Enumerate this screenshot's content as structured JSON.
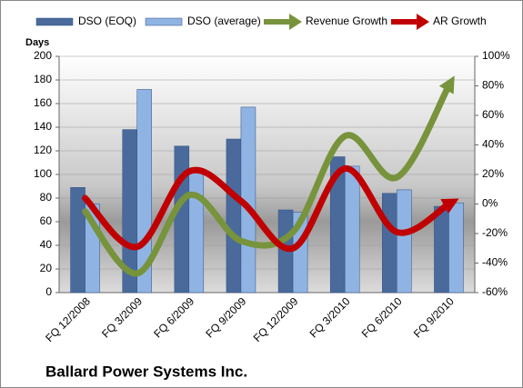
{
  "chart_data": {
    "type": "combo",
    "caption": "Ballard Power Systems Inc.",
    "ylabel": "Days",
    "categories": [
      "FQ 12/2008",
      "FQ 3/2009",
      "FQ 6/2009",
      "FQ 9/2009",
      "FQ 12/2009",
      "FQ 3/2010",
      "FQ 6/2010",
      "FQ 9/2010"
    ],
    "series": [
      {
        "name": "DSO (EOQ)",
        "kind": "bar",
        "color": "#4a6a9c",
        "values": [
          89,
          138,
          124,
          130,
          70,
          115,
          84,
          73
        ]
      },
      {
        "name": "DSO (average)",
        "kind": "bar",
        "color": "#8fb4e3",
        "values": [
          75,
          172,
          105,
          157,
          68,
          107,
          87,
          76
        ]
      },
      {
        "name": "Revenue Growth",
        "kind": "line",
        "axis": "y2",
        "color": "#77933c",
        "values": [
          -5,
          -47,
          6,
          -25,
          -19,
          46,
          18,
          80
        ]
      },
      {
        "name": "AR Growth",
        "kind": "line",
        "axis": "y2",
        "color": "#c00000",
        "values": [
          4,
          -29,
          22,
          2,
          -30,
          24,
          -19,
          0
        ]
      }
    ],
    "ylim": [
      0,
      200
    ],
    "yticks": [
      0,
      20,
      40,
      60,
      80,
      100,
      120,
      140,
      160,
      180,
      200
    ],
    "y2lim": [
      -60,
      100
    ],
    "y2ticks": [
      {
        "value": -60,
        "label": "-60%"
      },
      {
        "value": -40,
        "label": "-40%"
      },
      {
        "value": -20,
        "label": "-20%"
      },
      {
        "value": 0,
        "label": "0%"
      },
      {
        "value": 20,
        "label": "20%"
      },
      {
        "value": 40,
        "label": "40%"
      },
      {
        "value": 60,
        "label": "60%"
      },
      {
        "value": 80,
        "label": "80%"
      },
      {
        "value": 100,
        "label": "100%"
      }
    ],
    "grid": true
  }
}
